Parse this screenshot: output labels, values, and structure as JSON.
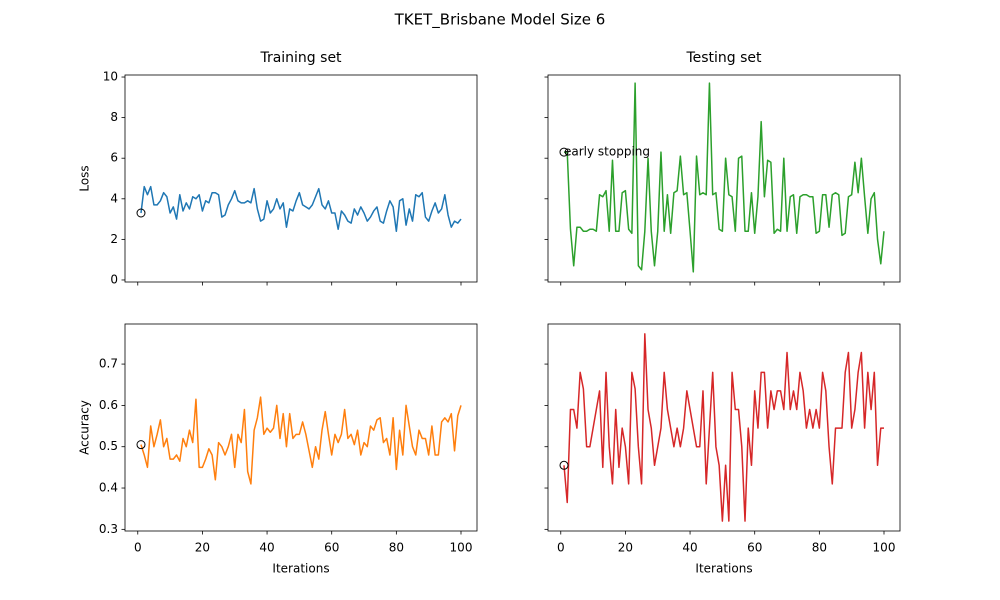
{
  "title": "TKET_Brisbane Model Size 6",
  "chart_data": [
    {
      "type": "line",
      "title": "Training set",
      "ylabel": "Loss",
      "x": [
        1,
        2,
        3,
        4,
        5,
        6,
        7,
        8,
        9,
        10,
        11,
        12,
        13,
        14,
        15,
        16,
        17,
        18,
        19,
        20,
        21,
        22,
        23,
        24,
        25,
        26,
        27,
        28,
        29,
        30,
        31,
        32,
        33,
        34,
        35,
        36,
        37,
        38,
        39,
        40,
        41,
        42,
        43,
        44,
        45,
        46,
        47,
        48,
        49,
        50,
        51,
        52,
        53,
        54,
        55,
        56,
        57,
        58,
        59,
        60,
        61,
        62,
        63,
        64,
        65,
        66,
        67,
        68,
        69,
        70,
        71,
        72,
        73,
        74,
        75,
        76,
        77,
        78,
        79,
        80,
        81,
        82,
        83,
        84,
        85,
        86,
        87,
        88,
        89,
        90,
        91,
        92,
        93,
        94,
        95,
        96,
        97,
        98,
        99,
        100
      ],
      "series": [
        {
          "color": "#1f77b4",
          "values": [
            3.3,
            4.6,
            4.2,
            4.6,
            3.7,
            3.7,
            3.9,
            4.3,
            4.1,
            3.3,
            3.6,
            3.0,
            4.2,
            3.4,
            3.8,
            3.5,
            4.1,
            4.0,
            4.2,
            3.4,
            3.9,
            3.8,
            4.3,
            4.3,
            4.2,
            3.1,
            3.2,
            3.7,
            4.0,
            4.4,
            3.9,
            3.8,
            3.8,
            3.9,
            3.8,
            4.5,
            3.5,
            2.9,
            3.0,
            3.9,
            3.3,
            3.5,
            4.0,
            3.5,
            3.8,
            2.6,
            3.5,
            3.4,
            3.9,
            4.3,
            3.7,
            3.6,
            3.5,
            3.7,
            4.1,
            4.5,
            3.7,
            3.5,
            3.9,
            3.3,
            3.3,
            2.5,
            3.4,
            3.2,
            2.9,
            2.8,
            3.5,
            3.2,
            3.6,
            3.3,
            2.9,
            3.1,
            3.4,
            3.6,
            2.9,
            2.8,
            3.4,
            3.9,
            3.6,
            2.4,
            3.9,
            4.0,
            2.7,
            3.5,
            2.9,
            4.2,
            4.1,
            4.3,
            3.1,
            2.9,
            3.4,
            3.8,
            3.3,
            3.5,
            4.2,
            3.2,
            2.6,
            2.9,
            2.8,
            3.0
          ]
        }
      ],
      "markers": [
        {
          "x": 1,
          "y": 3.3
        }
      ],
      "xlim": [
        -3.95,
        104.95
      ],
      "xticks": [
        0,
        20,
        40,
        60,
        80,
        100
      ],
      "xticklabels": false,
      "ylim": [
        -0.1,
        10.1
      ],
      "yticks": [
        0,
        2,
        4,
        6,
        8,
        10
      ],
      "yticklabels": true
    },
    {
      "type": "line",
      "title": "Testing set",
      "x": [
        1,
        2,
        3,
        4,
        5,
        6,
        7,
        8,
        9,
        10,
        11,
        12,
        13,
        14,
        15,
        16,
        17,
        18,
        19,
        20,
        21,
        22,
        23,
        24,
        25,
        26,
        27,
        28,
        29,
        30,
        31,
        32,
        33,
        34,
        35,
        36,
        37,
        38,
        39,
        40,
        41,
        42,
        43,
        44,
        45,
        46,
        47,
        48,
        49,
        50,
        51,
        52,
        53,
        54,
        55,
        56,
        57,
        58,
        59,
        60,
        61,
        62,
        63,
        64,
        65,
        66,
        67,
        68,
        69,
        70,
        71,
        72,
        73,
        74,
        75,
        76,
        77,
        78,
        79,
        80,
        81,
        82,
        83,
        84,
        85,
        86,
        87,
        88,
        89,
        90,
        91,
        92,
        93,
        94,
        95,
        96,
        97,
        98,
        99,
        100
      ],
      "series": [
        {
          "color": "#2ca02c",
          "values": [
            6.3,
            6.3,
            2.5,
            0.7,
            2.6,
            2.6,
            2.4,
            2.4,
            2.5,
            2.5,
            2.4,
            4.2,
            4.1,
            4.4,
            2.4,
            5.9,
            2.4,
            2.4,
            4.3,
            4.4,
            2.5,
            2.3,
            9.7,
            0.7,
            0.5,
            2.4,
            6.0,
            2.4,
            0.7,
            2.4,
            6.3,
            2.4,
            4.2,
            2.3,
            4.3,
            4.4,
            6.1,
            4.2,
            4.3,
            2.4,
            0.4,
            6.1,
            4.2,
            4.3,
            4.2,
            9.7,
            4.2,
            4.3,
            2.5,
            2.4,
            6.0,
            4.2,
            4.1,
            2.4,
            6.0,
            6.1,
            2.4,
            2.4,
            4.3,
            2.3,
            4.1,
            7.8,
            4.1,
            5.9,
            5.8,
            2.3,
            2.5,
            2.4,
            6.0,
            2.4,
            4.1,
            4.2,
            2.3,
            4.1,
            4.2,
            4.2,
            4.1,
            4.1,
            2.3,
            2.4,
            4.2,
            4.2,
            2.6,
            4.2,
            4.3,
            4.2,
            2.2,
            2.3,
            4.1,
            4.2,
            5.8,
            4.3,
            6.0,
            4.1,
            2.3,
            4.0,
            4.3,
            2.0,
            0.8,
            2.4
          ]
        }
      ],
      "markers": [
        {
          "x": 1,
          "y": 6.3
        }
      ],
      "annotations": [
        {
          "text": "early stopping",
          "x": 1,
          "y": 6.3
        }
      ],
      "xlim": [
        -3.95,
        104.95
      ],
      "xticks": [
        0,
        20,
        40,
        60,
        80,
        100
      ],
      "xticklabels": false,
      "ylim": [
        -0.1,
        10.1
      ],
      "yticks": [
        0,
        2,
        4,
        6,
        8,
        10
      ],
      "yticklabels": false
    },
    {
      "type": "line",
      "xlabel": "Iterations",
      "ylabel": "Accuracy",
      "x": [
        1,
        2,
        3,
        4,
        5,
        6,
        7,
        8,
        9,
        10,
        11,
        12,
        13,
        14,
        15,
        16,
        17,
        18,
        19,
        20,
        21,
        22,
        23,
        24,
        25,
        26,
        27,
        28,
        29,
        30,
        31,
        32,
        33,
        34,
        35,
        36,
        37,
        38,
        39,
        40,
        41,
        42,
        43,
        44,
        45,
        46,
        47,
        48,
        49,
        50,
        51,
        52,
        53,
        54,
        55,
        56,
        57,
        58,
        59,
        60,
        61,
        62,
        63,
        64,
        65,
        66,
        67,
        68,
        69,
        70,
        71,
        72,
        73,
        74,
        75,
        76,
        77,
        78,
        79,
        80,
        81,
        82,
        83,
        84,
        85,
        86,
        87,
        88,
        89,
        90,
        91,
        92,
        93,
        94,
        95,
        96,
        97,
        98,
        99,
        100
      ],
      "series": [
        {
          "color": "#ff7f0e",
          "values": [
            0.505,
            0.48,
            0.45,
            0.55,
            0.5,
            0.53,
            0.565,
            0.5,
            0.52,
            0.47,
            0.47,
            0.48,
            0.465,
            0.52,
            0.5,
            0.54,
            0.51,
            0.615,
            0.45,
            0.45,
            0.47,
            0.495,
            0.48,
            0.42,
            0.51,
            0.5,
            0.48,
            0.5,
            0.53,
            0.45,
            0.53,
            0.51,
            0.59,
            0.44,
            0.41,
            0.54,
            0.57,
            0.62,
            0.53,
            0.545,
            0.535,
            0.545,
            0.6,
            0.52,
            0.58,
            0.5,
            0.58,
            0.52,
            0.53,
            0.53,
            0.56,
            0.53,
            0.49,
            0.45,
            0.5,
            0.47,
            0.54,
            0.585,
            0.53,
            0.48,
            0.53,
            0.51,
            0.53,
            0.59,
            0.52,
            0.53,
            0.505,
            0.54,
            0.48,
            0.51,
            0.5,
            0.55,
            0.54,
            0.565,
            0.57,
            0.51,
            0.52,
            0.48,
            0.57,
            0.445,
            0.54,
            0.48,
            0.6,
            0.55,
            0.5,
            0.48,
            0.54,
            0.52,
            0.52,
            0.48,
            0.55,
            0.48,
            0.48,
            0.56,
            0.57,
            0.56,
            0.58,
            0.49,
            0.575,
            0.6
          ]
        }
      ],
      "markers": [
        {
          "x": 1,
          "y": 0.505
        }
      ],
      "xlim": [
        -3.95,
        104.95
      ],
      "xticks": [
        0,
        20,
        40,
        60,
        80,
        100
      ],
      "xticklabels": true,
      "ylim": [
        0.296,
        0.797
      ],
      "yticks": [
        0.3,
        0.4,
        0.5,
        0.6,
        0.7
      ],
      "yticklabels": true
    },
    {
      "type": "line",
      "xlabel": "Iterations",
      "x": [
        1,
        2,
        3,
        4,
        5,
        6,
        7,
        8,
        9,
        10,
        11,
        12,
        13,
        14,
        15,
        16,
        17,
        18,
        19,
        20,
        21,
        22,
        23,
        24,
        25,
        26,
        27,
        28,
        29,
        30,
        31,
        32,
        33,
        34,
        35,
        36,
        37,
        38,
        39,
        40,
        41,
        42,
        43,
        44,
        45,
        46,
        47,
        48,
        49,
        50,
        51,
        52,
        53,
        54,
        55,
        56,
        57,
        58,
        59,
        60,
        61,
        62,
        63,
        64,
        65,
        66,
        67,
        68,
        69,
        70,
        71,
        72,
        73,
        74,
        75,
        76,
        77,
        78,
        79,
        80,
        81,
        82,
        83,
        84,
        85,
        86,
        87,
        88,
        89,
        90,
        91,
        92,
        93,
        94,
        95,
        96,
        97,
        98,
        99,
        100
      ],
      "series": [
        {
          "color": "#d62728",
          "values": [
            0.455,
            0.365,
            0.59,
            0.59,
            0.545,
            0.68,
            0.64,
            0.5,
            0.5,
            0.545,
            0.59,
            0.635,
            0.45,
            0.68,
            0.5,
            0.41,
            0.59,
            0.45,
            0.545,
            0.5,
            0.41,
            0.68,
            0.64,
            0.5,
            0.41,
            0.773,
            0.59,
            0.545,
            0.455,
            0.5,
            0.545,
            0.68,
            0.59,
            0.545,
            0.5,
            0.545,
            0.5,
            0.545,
            0.635,
            0.59,
            0.545,
            0.5,
            0.5,
            0.635,
            0.41,
            0.545,
            0.68,
            0.5,
            0.455,
            0.32,
            0.455,
            0.32,
            0.68,
            0.59,
            0.59,
            0.5,
            0.32,
            0.545,
            0.455,
            0.635,
            0.545,
            0.68,
            0.68,
            0.545,
            0.635,
            0.59,
            0.635,
            0.635,
            0.59,
            0.728,
            0.59,
            0.635,
            0.59,
            0.68,
            0.635,
            0.545,
            0.59,
            0.545,
            0.59,
            0.545,
            0.68,
            0.635,
            0.5,
            0.41,
            0.545,
            0.545,
            0.545,
            0.68,
            0.728,
            0.545,
            0.59,
            0.68,
            0.728,
            0.545,
            0.68,
            0.59,
            0.68,
            0.455,
            0.545,
            0.545
          ]
        }
      ],
      "markers": [
        {
          "x": 1,
          "y": 0.455
        }
      ],
      "xlim": [
        -3.95,
        104.95
      ],
      "xticks": [
        0,
        20,
        40,
        60,
        80,
        100
      ],
      "xticklabels": true,
      "ylim": [
        0.296,
        0.797
      ],
      "yticks": [
        0.3,
        0.4,
        0.5,
        0.6,
        0.7
      ],
      "yticklabels": false
    }
  ]
}
